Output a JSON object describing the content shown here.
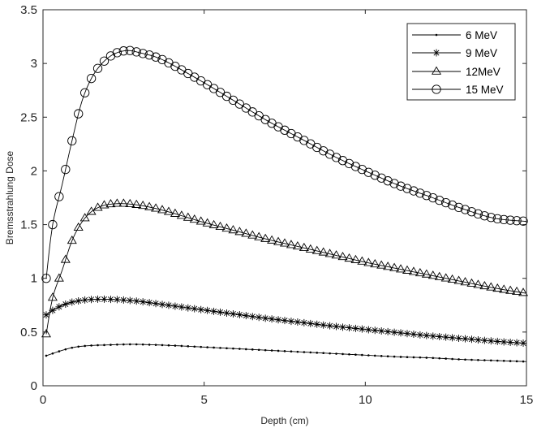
{
  "chart_data": {
    "type": "line",
    "title": "",
    "xlabel": "Depth (cm)",
    "ylabel": "Bremsstrahlung Dose",
    "xlim": [
      0,
      15
    ],
    "ylim": [
      0,
      3.5
    ],
    "xticks": [
      "0",
      "5",
      "10",
      "15"
    ],
    "yticks": [
      "0",
      "0.5",
      "1",
      "1.5",
      "2",
      "2.5",
      "3",
      "3.5"
    ],
    "grid": false,
    "legend_position": "top-right",
    "series": [
      {
        "name": "6 MeV",
        "marker": "dot",
        "x": [
          0.1,
          0.6,
          1.0,
          1.5,
          2.0,
          2.5,
          3.0,
          4.0,
          5.0,
          6.0,
          7.0,
          8.0,
          9.0,
          10.0,
          11.0,
          12.0,
          13.0,
          14.0,
          15.0
        ],
        "y": [
          0.28,
          0.33,
          0.36,
          0.375,
          0.38,
          0.385,
          0.385,
          0.375,
          0.36,
          0.345,
          0.33,
          0.315,
          0.3,
          0.285,
          0.27,
          0.26,
          0.245,
          0.235,
          0.225
        ]
      },
      {
        "name": "9 MeV",
        "marker": "asterisk",
        "x": [
          0.1,
          0.4,
          0.8,
          1.2,
          1.6,
          2.0,
          2.4,
          3.0,
          4.0,
          5.0,
          6.0,
          7.0,
          8.0,
          9.0,
          10.0,
          11.0,
          12.0,
          13.0,
          14.0,
          15.0
        ],
        "y": [
          0.66,
          0.72,
          0.77,
          0.795,
          0.805,
          0.805,
          0.8,
          0.785,
          0.745,
          0.705,
          0.665,
          0.625,
          0.59,
          0.555,
          0.525,
          0.495,
          0.465,
          0.44,
          0.415,
          0.395
        ]
      },
      {
        "name": "12MeV",
        "marker": "triangle",
        "x": [
          0.1,
          0.3,
          0.6,
          0.9,
          1.2,
          1.5,
          1.8,
          2.1,
          2.5,
          3.0,
          3.5,
          4.0,
          5.0,
          6.0,
          7.0,
          8.0,
          9.0,
          10.0,
          11.0,
          12.0,
          13.0,
          14.0,
          15.0
        ],
        "y": [
          0.48,
          0.82,
          1.08,
          1.35,
          1.52,
          1.62,
          1.67,
          1.69,
          1.695,
          1.68,
          1.65,
          1.61,
          1.52,
          1.44,
          1.36,
          1.29,
          1.22,
          1.15,
          1.09,
          1.03,
          0.97,
          0.91,
          0.86
        ]
      },
      {
        "name": "15 MeV",
        "marker": "circle",
        "x": [
          0.1,
          0.3,
          0.6,
          0.9,
          1.2,
          1.5,
          1.8,
          2.1,
          2.4,
          2.7,
          3.0,
          3.5,
          4.0,
          5.0,
          6.0,
          7.0,
          8.0,
          9.0,
          10.0,
          11.0,
          12.0,
          13.0,
          14.0,
          15.0
        ],
        "y": [
          1.0,
          1.5,
          1.88,
          2.28,
          2.64,
          2.86,
          2.99,
          3.07,
          3.11,
          3.12,
          3.1,
          3.06,
          2.99,
          2.82,
          2.64,
          2.46,
          2.3,
          2.14,
          2.0,
          1.87,
          1.76,
          1.65,
          1.56,
          1.53
        ]
      }
    ]
  }
}
